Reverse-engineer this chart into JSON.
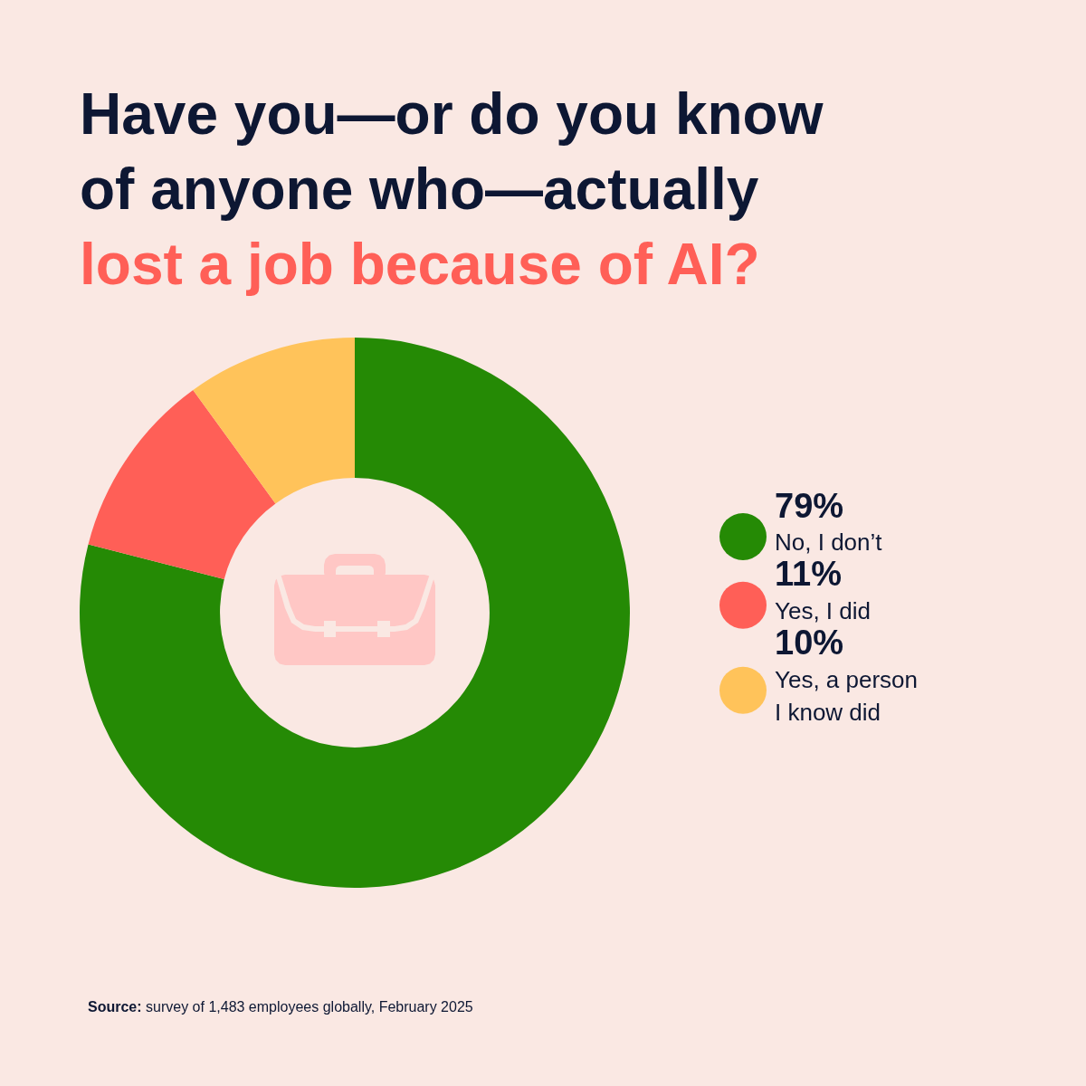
{
  "chart_data": {
    "type": "donut",
    "title": "Have you—or do you know\nof anyone who—actually\nlost a job because of AI?",
    "categories": [
      "No, I don’t",
      "Yes, I did",
      "Yes, a person I know did"
    ],
    "values": [
      79,
      11,
      10
    ],
    "value_labels": [
      "79%",
      "11%",
      "10%"
    ],
    "colors": [
      "#258a05",
      "#ff5f57",
      "#ffc35a"
    ],
    "legend": "right",
    "annotations": [
      "Source: survey of 1,483 employees globally, February 2025"
    ]
  }
}
